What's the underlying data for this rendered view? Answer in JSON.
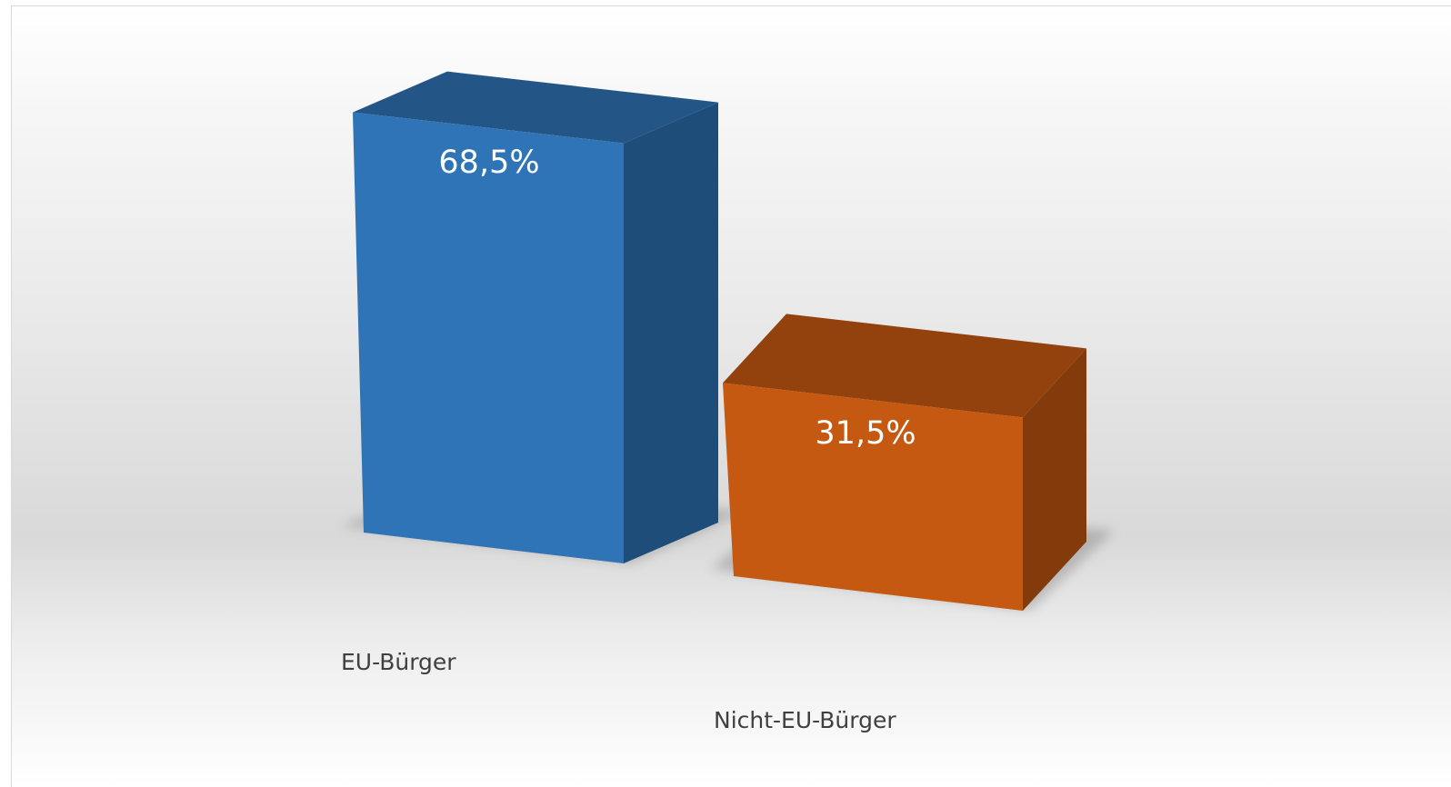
{
  "chart_data": {
    "type": "bar",
    "categories": [
      "EU-Bürger",
      "Nicht-EU-Bürger"
    ],
    "values": [
      68.5,
      31.5
    ],
    "data_labels": [
      "68,5%",
      "31,5%"
    ],
    "unit": "%",
    "title": "",
    "xlabel": "",
    "ylabel": "",
    "grid": false,
    "legend": "none",
    "style": "3d-column",
    "colors": [
      "#2f74b7",
      "#c65911"
    ]
  }
}
